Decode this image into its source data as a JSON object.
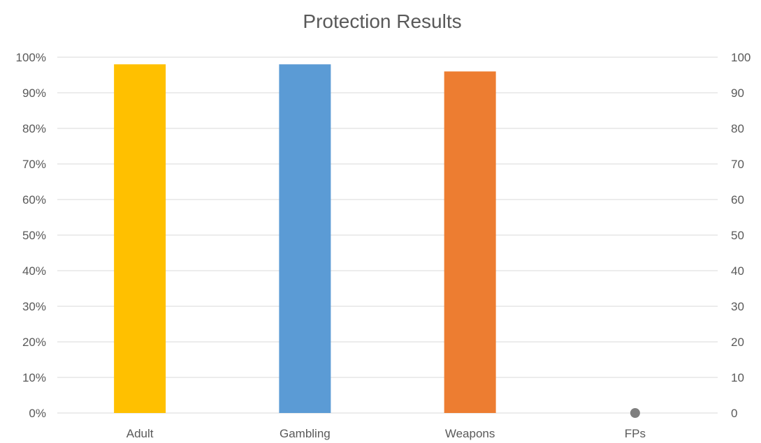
{
  "chart_data": {
    "type": "bar",
    "title": "Protection Results",
    "categories": [
      "Adult",
      "Gambling",
      "Weapons",
      "FPs"
    ],
    "series": [
      {
        "type": "bar",
        "axis": "left",
        "values": [
          0.98,
          0.98,
          0.96,
          null
        ],
        "colors": [
          "#FFC000",
          "#5B9BD5",
          "#ED7D31",
          null
        ]
      },
      {
        "type": "scatter",
        "axis": "right",
        "values": [
          null,
          null,
          null,
          0
        ],
        "color": "#7F7F7F"
      }
    ],
    "left_axis": {
      "ylim": [
        0,
        1
      ],
      "ticks": [
        0,
        0.1,
        0.2,
        0.3,
        0.4,
        0.5,
        0.6,
        0.7,
        0.8,
        0.9,
        1.0
      ],
      "tick_labels": [
        "0%",
        "10%",
        "20%",
        "30%",
        "40%",
        "50%",
        "60%",
        "70%",
        "80%",
        "90%",
        "100%"
      ]
    },
    "right_axis": {
      "ylim": [
        0,
        100
      ],
      "ticks": [
        0,
        10,
        20,
        30,
        40,
        50,
        60,
        70,
        80,
        90,
        100
      ],
      "tick_labels": [
        "0",
        "10",
        "20",
        "30",
        "40",
        "50",
        "60",
        "70",
        "80",
        "90",
        "100"
      ]
    },
    "xlabel": "",
    "ylabel": "",
    "grid": true,
    "legend": false,
    "colors": {
      "text": "#595959",
      "grid": "#d9d9d9",
      "background": "#ffffff"
    }
  }
}
